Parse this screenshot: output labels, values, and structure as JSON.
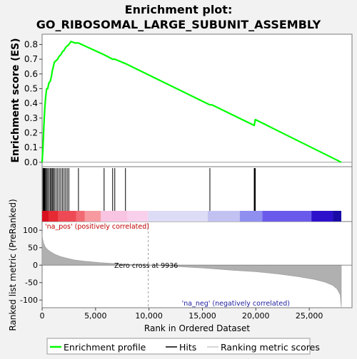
{
  "chart_data": {
    "type": "line",
    "title_line1": "Enrichment plot:",
    "title_line2": "GO_RIBOSOMAL_LARGE_SUBUNIT_ASSEMBLY",
    "top_panel": {
      "ylabel": "Enrichment score (ES)",
      "ylim": [
        -0.03,
        0.87
      ],
      "yticks": [
        "0.0",
        "0.1",
        "0.2",
        "0.3",
        "0.4",
        "0.5",
        "0.6",
        "0.7",
        "0.8"
      ],
      "ytick_values": [
        0,
        0.1,
        0.2,
        0.3,
        0.4,
        0.5,
        0.6,
        0.7,
        0.8
      ],
      "series": {
        "name": "Enrichment profile",
        "color": "#00ff00",
        "x": [
          0,
          40,
          80,
          120,
          160,
          200,
          260,
          330,
          420,
          520,
          640,
          760,
          860,
          950,
          1050,
          1150,
          1300,
          1450,
          1600,
          1750,
          1900,
          2050,
          2200,
          2350,
          2500,
          2700,
          3100,
          3400,
          5800,
          6600,
          6800,
          7800,
          15700,
          15900,
          19850,
          19900,
          19950,
          28000
        ],
        "y": [
          0.0,
          0.05,
          0.1,
          0.17,
          0.24,
          0.3,
          0.38,
          0.44,
          0.5,
          0.5,
          0.54,
          0.55,
          0.58,
          0.62,
          0.65,
          0.68,
          0.69,
          0.7,
          0.72,
          0.73,
          0.75,
          0.76,
          0.78,
          0.79,
          0.8,
          0.82,
          0.81,
          0.81,
          0.73,
          0.7,
          0.7,
          0.67,
          0.39,
          0.39,
          0.25,
          0.27,
          0.29,
          0.0
        ]
      }
    },
    "hits": {
      "name": "Hits",
      "positions": [
        80,
        140,
        200,
        260,
        330,
        420,
        520,
        640,
        760,
        860,
        950,
        1050,
        1150,
        1300,
        1450,
        1600,
        1750,
        1900,
        2050,
        2200,
        2350,
        2500,
        3400,
        5800,
        6600,
        6800,
        7800,
        15700,
        19850,
        19900,
        19950
      ]
    },
    "rank_bar": {
      "segments": [
        {
          "from": 0,
          "to": 600,
          "color": "#d81020"
        },
        {
          "from": 600,
          "to": 1500,
          "color": "#e52a34"
        },
        {
          "from": 1500,
          "to": 3200,
          "color": "#ee4a55"
        },
        {
          "from": 3200,
          "to": 4000,
          "color": "#f26a72"
        },
        {
          "from": 4000,
          "to": 5500,
          "color": "#f79aa0"
        },
        {
          "from": 5500,
          "to": 8000,
          "color": "#f8c4e2"
        },
        {
          "from": 8000,
          "to": 9936,
          "color": "#f9d0ec"
        },
        {
          "from": 9936,
          "to": 15500,
          "color": "#dcdcf6"
        },
        {
          "from": 15500,
          "to": 18500,
          "color": "#c2c2f2"
        },
        {
          "from": 18500,
          "to": 20600,
          "color": "#8f8ff0"
        },
        {
          "from": 20600,
          "to": 25200,
          "color": "#6a5aec"
        },
        {
          "from": 25200,
          "to": 27200,
          "color": "#2c10cc"
        },
        {
          "from": 27200,
          "to": 28000,
          "color": "#1a0aa6"
        }
      ]
    },
    "bottom_panel": {
      "ylabel": "Ranked list metric (PreRanked)",
      "xlabel": "Rank in Ordered Dataset",
      "ylim": [
        -122,
        125
      ],
      "yticks": [
        "100",
        "50",
        "0",
        "-50",
        "-100"
      ],
      "ytick_values": [
        100,
        50,
        0,
        -50,
        -100
      ],
      "xlim": [
        0,
        29000
      ],
      "xticks": [
        "0",
        "5,000",
        "10,000",
        "15,000",
        "20,000",
        "25,000"
      ],
      "xtick_values": [
        0,
        5000,
        10000,
        15000,
        20000,
        25000
      ],
      "series": {
        "name": "Ranking metric scores",
        "color": "#b0b0b0",
        "x": [
          0,
          50,
          150,
          300,
          500,
          800,
          1200,
          1700,
          2300,
          3000,
          4000,
          5500,
          7500,
          9936,
          12000,
          15000,
          18000,
          20000,
          22000,
          24000,
          25500,
          26500,
          27200,
          27600,
          27900,
          28000
        ],
        "y": [
          90,
          75,
          62,
          52,
          45,
          38,
          31,
          25,
          20,
          15,
          11,
          7,
          3,
          0,
          -3,
          -8,
          -15,
          -19,
          -25,
          -33,
          -41,
          -49,
          -58,
          -68,
          -85,
          -120
        ]
      },
      "zero_cross_label": "Zero cross at 9936",
      "zero_cross": 9936,
      "pos_label": "'na_pos' (positively correlated)",
      "neg_label": "'na_neg' (negatively correlated)"
    },
    "legend": {
      "items": [
        "Enrichment profile",
        "Hits",
        "Ranking metric scores"
      ]
    }
  }
}
